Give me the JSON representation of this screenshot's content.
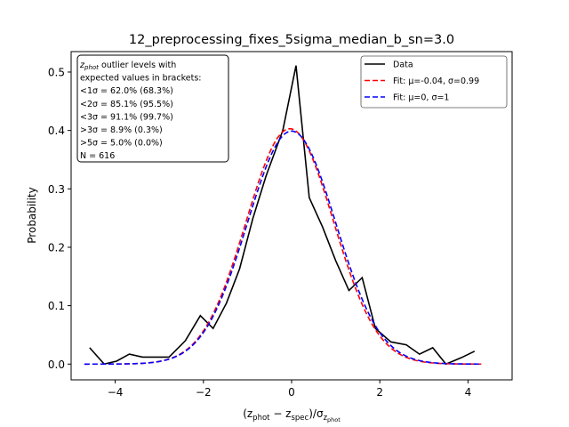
{
  "chart_data": {
    "type": "line",
    "title": "12_preprocessing_fixes_5sigma_median_b_sn=3.0",
    "xlabel_parts": {
      "open": "(z",
      "sub1": "phot",
      "mid": " − z",
      "sub2": "spec",
      "close": ")/σ",
      "sub3": "z",
      "sub4": "phot"
    },
    "ylabel": "Probability",
    "xlim": [
      -5,
      5
    ],
    "ylim": [
      -0.027,
      0.535
    ],
    "xticks": [
      -4,
      -2,
      0,
      2,
      4
    ],
    "xtick_labels": [
      "−4",
      "−2",
      "0",
      "2",
      "4"
    ],
    "yticks": [
      0.0,
      0.1,
      0.2,
      0.3,
      0.4,
      0.5
    ],
    "ytick_labels": [
      "0.0",
      "0.1",
      "0.2",
      "0.3",
      "0.4",
      "0.5"
    ],
    "grid": false,
    "legend_placement": "top-right",
    "series": [
      {
        "name": "Data",
        "color": "#000000",
        "dash": "solid",
        "x": [
          -4.58,
          -4.25,
          -3.97,
          -3.68,
          -3.38,
          -3.09,
          -2.78,
          -2.41,
          -2.07,
          -1.78,
          -1.48,
          -1.18,
          -0.88,
          -0.58,
          -0.2,
          0.1,
          0.4,
          0.7,
          1.0,
          1.3,
          1.6,
          1.9,
          2.25,
          2.6,
          2.9,
          3.2,
          3.5,
          3.85,
          4.15
        ],
        "y": [
          0.028,
          0.0,
          0.005,
          0.017,
          0.012,
          0.012,
          0.012,
          0.04,
          0.083,
          0.061,
          0.104,
          0.163,
          0.249,
          0.322,
          0.4,
          0.511,
          0.285,
          0.235,
          0.177,
          0.126,
          0.148,
          0.061,
          0.038,
          0.033,
          0.017,
          0.028,
          0.0,
          0.011,
          0.022
        ]
      },
      {
        "name": "Fit: μ=-0.04, σ=0.99",
        "color": "#ff0000",
        "dash": "dashed",
        "mu": -0.04,
        "sigma": 0.99,
        "xrange": [
          -4.7,
          4.3
        ]
      },
      {
        "name": "Fit: μ=0, σ=1",
        "color": "#0000ff",
        "dash": "dashed",
        "mu": 0,
        "sigma": 1,
        "xrange": [
          -4.7,
          4.3
        ]
      }
    ],
    "annotation": {
      "lines": [
        {
          "z": "z",
          "sub": "phot",
          "rest": " outlier levels with"
        },
        {
          "text": " expected values in brackets:"
        },
        {
          "text": " <1σ = 62.0% (68.3%)"
        },
        {
          "text": " <2σ = 85.1% (95.5%)"
        },
        {
          "text": " <3σ = 91.1% (99.7%)"
        },
        {
          "text": " >3σ = 8.9% (0.3%)"
        },
        {
          "text": " >5σ = 5.0% (0.0%)"
        },
        {
          "text": "N = 616"
        }
      ]
    }
  }
}
